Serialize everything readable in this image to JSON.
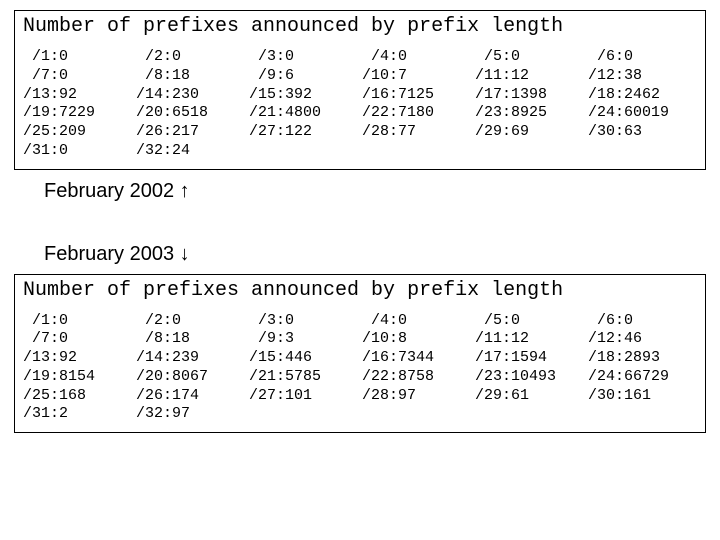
{
  "box1": {
    "title": "Number of prefixes announced by prefix length",
    "cells": [
      " /1:0",
      " /2:0",
      " /3:0",
      " /4:0",
      " /5:0",
      " /6:0",
      " /7:0",
      " /8:18",
      " /9:6",
      "/10:7",
      "/11:12",
      "/12:38",
      "/13:92",
      "/14:230",
      "/15:392",
      "/16:7125",
      "/17:1398",
      "/18:2462",
      "/19:7229",
      "/20:6518",
      "/21:4800",
      "/22:7180",
      "/23:8925",
      "/24:60019",
      "/25:209",
      "/26:217",
      "/27:122",
      "/28:77",
      "/29:69",
      "/30:63",
      "/31:0",
      "/32:24",
      "",
      "",
      "",
      ""
    ]
  },
  "caption1": {
    "text": "February 2002 ",
    "arrow": "↑"
  },
  "caption2": {
    "text": "February 2003 ",
    "arrow": "↓"
  },
  "box2": {
    "title": "Number of prefixes announced by prefix length",
    "cells": [
      " /1:0",
      " /2:0",
      " /3:0",
      " /4:0",
      " /5:0",
      " /6:0",
      " /7:0",
      " /8:18",
      " /9:3",
      "/10:8",
      "/11:12",
      "/12:46",
      "/13:92",
      "/14:239",
      "/15:446",
      "/16:7344",
      "/17:1594",
      "/18:2893",
      "/19:8154",
      "/20:8067",
      "/21:5785",
      "/22:8758",
      "/23:10493",
      "/24:66729",
      "/25:168",
      "/26:174",
      "/27:101",
      "/28:97",
      "/29:61",
      "/30:161",
      "/31:2",
      "/32:97",
      "",
      "",
      "",
      ""
    ]
  }
}
